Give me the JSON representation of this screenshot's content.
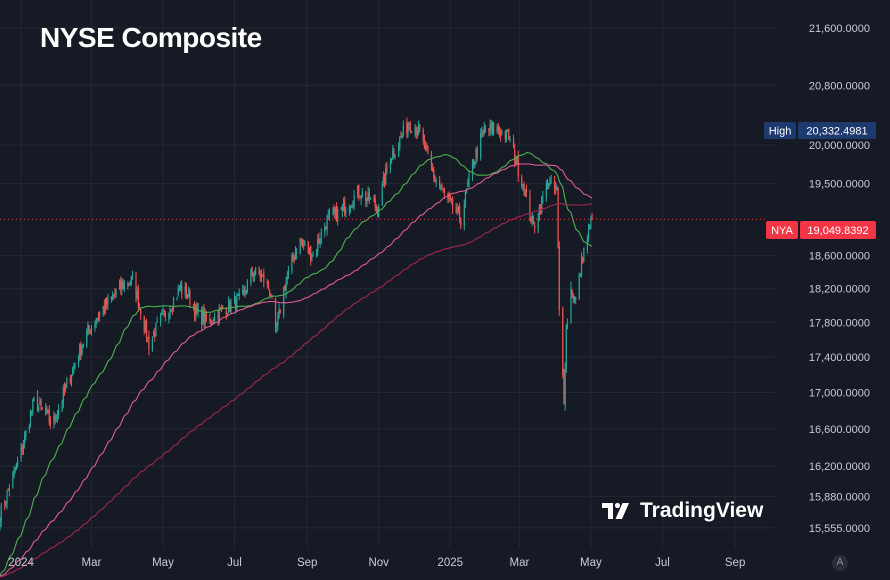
{
  "header": {
    "title": "NYSE Composite"
  },
  "watermark": {
    "text": "TradingView",
    "icon": "tradingview-logo-icon"
  },
  "auto_button": {
    "label": "A"
  },
  "colors": {
    "background": "#161a25",
    "grid": "#242834",
    "up": "#26a69a",
    "down": "#ef5350",
    "ma_short": "#4caf50",
    "ma_mid": "#e05a8e",
    "ma_long": "#a0264e",
    "high_badge": "#1c3a6e",
    "price_badge": "#f23645"
  },
  "chart_data": {
    "type": "candlestick",
    "title": "NYSE Composite",
    "symbol": "NYA",
    "y_ticks": [
      15555,
      15880,
      16200,
      16600,
      17000,
      17400,
      17800,
      18200,
      18600,
      19500,
      20000,
      20800,
      21600
    ],
    "y_tick_labels": [
      "15,555.0000",
      "15,880.0000",
      "16,200.0000",
      "16,600.0000",
      "17,000.0000",
      "17,400.0000",
      "17,800.0000",
      "18,200.0000",
      "18,600.0000",
      "19,500.0000",
      "20,000.0000",
      "20,800.0000",
      "21,600.0000"
    ],
    "x_labels": [
      "2024",
      "Mar",
      "May",
      "Jul",
      "Sep",
      "Nov",
      "2025",
      "Mar",
      "May",
      "Jul",
      "Sep"
    ],
    "high": {
      "label": "High",
      "value": 20332.4981,
      "value_label": "20,332.4981"
    },
    "last": {
      "label": "NYA",
      "value": 19049.8392,
      "value_label": "19,049.8392"
    },
    "keypoints": [
      [
        "2023-12-14",
        15680
      ],
      [
        "2024-01-01",
        16350
      ],
      [
        "2024-01-12",
        16900
      ],
      [
        "2024-01-20",
        16780
      ],
      [
        "2024-01-28",
        16650
      ],
      [
        "2024-02-08",
        17050
      ],
      [
        "2024-02-25",
        17650
      ],
      [
        "2024-03-10",
        17950
      ],
      [
        "2024-03-28",
        18250
      ],
      [
        "2024-04-05",
        18300
      ],
      [
        "2024-04-12",
        17950
      ],
      [
        "2024-04-19",
        17550
      ],
      [
        "2024-04-26",
        17750
      ],
      [
        "2024-05-05",
        17950
      ],
      [
        "2024-05-15",
        18200
      ],
      [
        "2024-05-22",
        18150
      ],
      [
        "2024-05-30",
        17900
      ],
      [
        "2024-06-10",
        17800
      ],
      [
        "2024-06-20",
        17950
      ],
      [
        "2024-06-28",
        18000
      ],
      [
        "2024-07-08",
        18100
      ],
      [
        "2024-07-16",
        18400
      ],
      [
        "2024-07-24",
        18350
      ],
      [
        "2024-08-01",
        18150
      ],
      [
        "2024-08-05",
        17650
      ],
      [
        "2024-08-12",
        18200
      ],
      [
        "2024-08-25",
        18800
      ],
      [
        "2024-09-06",
        18600
      ],
      [
        "2024-09-18",
        19050
      ],
      [
        "2024-09-30",
        19150
      ],
      [
        "2024-10-15",
        19400
      ],
      [
        "2024-10-31",
        19200
      ],
      [
        "2024-11-11",
        19850
      ],
      [
        "2024-11-27",
        20300
      ],
      [
        "2024-12-05",
        20200
      ],
      [
        "2024-12-18",
        19600
      ],
      [
        "2024-12-31",
        19250
      ],
      [
        "2025-01-10",
        19050
      ],
      [
        "2025-01-20",
        19750
      ],
      [
        "2025-01-30",
        20200
      ],
      [
        "2025-02-12",
        20200
      ],
      [
        "2025-02-20",
        20100
      ],
      [
        "2025-03-04",
        19500
      ],
      [
        "2025-03-13",
        18950
      ],
      [
        "2025-03-25",
        19500
      ],
      [
        "2025-04-02",
        19400
      ],
      [
        "2025-04-04",
        17900
      ],
      [
        "2025-04-08",
        16950
      ],
      [
        "2025-04-10",
        17750
      ],
      [
        "2025-04-14",
        18200
      ],
      [
        "2025-04-18",
        18050
      ],
      [
        "2025-04-24",
        18600
      ],
      [
        "2025-04-30",
        18950
      ],
      [
        "2025-05-02",
        19049.84
      ]
    ],
    "x_range": [
      "2023-12-14",
      "2025-10-05"
    ],
    "moving_averages": [
      "short",
      "mid",
      "long"
    ]
  }
}
